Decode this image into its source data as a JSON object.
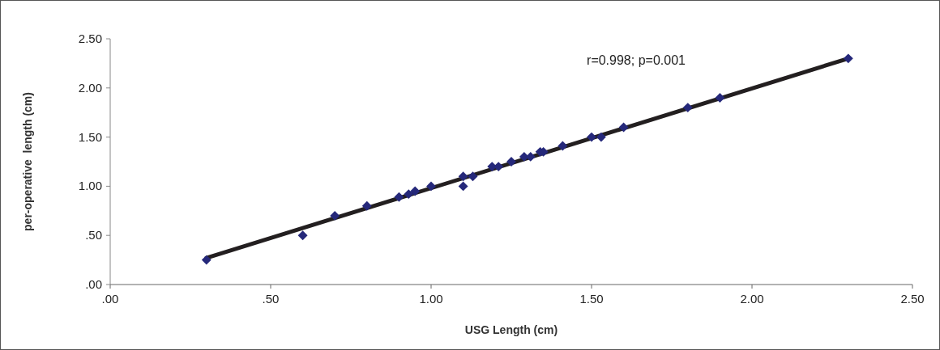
{
  "chart_data": {
    "type": "scatter",
    "xlabel": "USG Length (cm)",
    "ylabel": "per-operative  length (cm)",
    "annotations": [
      "r=0.998; p=0.001"
    ],
    "xlim": [
      0,
      2.5
    ],
    "ylim": [
      0,
      2.5
    ],
    "xticks": [
      {
        "value": 0,
        "label": ".00"
      },
      {
        "value": 0.5,
        "label": ".50"
      },
      {
        "value": 1,
        "label": "1.00"
      },
      {
        "value": 1.5,
        "label": "1.50"
      },
      {
        "value": 2,
        "label": "2.00"
      },
      {
        "value": 2.5,
        "label": "2.50"
      }
    ],
    "yticks": [
      {
        "value": 0,
        "label": ".00"
      },
      {
        "value": 0.5,
        "label": ".50"
      },
      {
        "value": 1,
        "label": "1.00"
      },
      {
        "value": 1.5,
        "label": "1.50"
      },
      {
        "value": 2,
        "label": "2.00"
      },
      {
        "value": 2.5,
        "label": "2.50"
      }
    ],
    "grid": false,
    "series": [
      {
        "type": "line",
        "color": "#231f20",
        "x": [
          0.3,
          2.3
        ],
        "values": [
          0.27,
          2.3
        ]
      },
      {
        "marker": "diamond",
        "color": "#25287a",
        "x": [
          0.3,
          0.6,
          0.7,
          0.8,
          0.9,
          0.93,
          0.95,
          1.0,
          1.1,
          1.1,
          1.13,
          1.19,
          1.21,
          1.25,
          1.29,
          1.31,
          1.34,
          1.35,
          1.41,
          1.5,
          1.53,
          1.6,
          1.8,
          1.9,
          2.3
        ],
        "values": [
          0.25,
          0.5,
          0.7,
          0.8,
          0.89,
          0.92,
          0.95,
          1.0,
          1.1,
          1.0,
          1.1,
          1.2,
          1.2,
          1.25,
          1.3,
          1.3,
          1.35,
          1.35,
          1.41,
          1.5,
          1.5,
          1.6,
          1.8,
          1.9,
          2.3
        ]
      }
    ]
  }
}
